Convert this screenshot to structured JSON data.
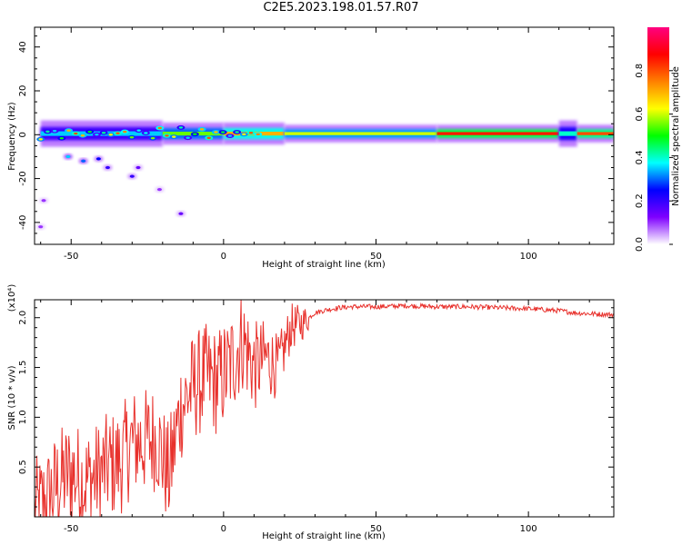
{
  "title": "C2E5.2023.198.01.57.R07",
  "colors": {
    "snr_line": "#e8312c",
    "axis": "#000000",
    "background": "#ffffff"
  },
  "chart_data": [
    {
      "type": "heatmap",
      "name": "spectrogram",
      "xlabel": "Height of straight line (km)",
      "ylabel": "Frequency (Hz)",
      "xlim": [
        -62,
        128
      ],
      "ylim": [
        -50,
        49
      ],
      "xticks": [
        -50,
        0,
        50,
        100
      ],
      "yticks": [
        -40,
        -20,
        0,
        20,
        40
      ],
      "colorbar": {
        "label": "Normalized spectral amplitude",
        "range": [
          0.0,
          1.0
        ],
        "ticks": [
          0.0,
          0.2,
          0.4,
          0.6,
          0.8
        ],
        "tick_labels": [
          "0.0",
          "0.2",
          "0.4",
          "0.6",
          "0.8"
        ],
        "stops": [
          "#ffffff",
          "#7f00ff",
          "#0000ff",
          "#00ffff",
          "#00ff00",
          "#ffff00",
          "#ff8000",
          "#ff0000",
          "#ff0080"
        ]
      },
      "main_band": {
        "center_hz": 0.5,
        "segments": [
          {
            "x": [
              -60,
              -20
            ],
            "half_width_hz": 3.0,
            "amplitude": 0.35
          },
          {
            "x": [
              -20,
              0
            ],
            "half_width_hz": 2.5,
            "amplitude": 0.55
          },
          {
            "x": [
              0,
              20
            ],
            "half_width_hz": 2.5,
            "amplitude": 0.7
          },
          {
            "x": [
              20,
              70
            ],
            "half_width_hz": 2.0,
            "amplitude": 0.6
          },
          {
            "x": [
              70,
              110
            ],
            "half_width_hz": 2.0,
            "amplitude": 0.85
          },
          {
            "x": [
              110,
              116
            ],
            "half_width_hz": 3.0,
            "amplitude": 0.4
          },
          {
            "x": [
              116,
              128
            ],
            "half_width_hz": 2.0,
            "amplitude": 0.8
          }
        ]
      },
      "scatter_blobs": [
        {
          "x": -51,
          "y": -10,
          "amplitude": 0.35
        },
        {
          "x": -46,
          "y": -12,
          "amplitude": 0.3
        },
        {
          "x": -41,
          "y": -11,
          "amplitude": 0.25
        },
        {
          "x": -38,
          "y": -15,
          "amplitude": 0.2
        },
        {
          "x": -30,
          "y": -19,
          "amplitude": 0.2
        },
        {
          "x": -28,
          "y": -15,
          "amplitude": 0.15
        },
        {
          "x": -21,
          "y": -25,
          "amplitude": 0.1
        },
        {
          "x": -14,
          "y": -36,
          "amplitude": 0.15
        },
        {
          "x": -59,
          "y": -30,
          "amplitude": 0.1
        },
        {
          "x": -60,
          "y": -42,
          "amplitude": 0.1
        }
      ]
    },
    {
      "type": "line",
      "name": "snr",
      "xlabel": "Height of straight line (km)",
      "ylabel": "SNR (10 * v/v)",
      "y_multiplier": "(x10⁴)",
      "xlim": [
        -62,
        128
      ],
      "ylim": [
        0,
        2.18
      ],
      "xticks": [
        -50,
        0,
        50,
        100
      ],
      "yticks": [
        0.5,
        1.0,
        1.5,
        2.0
      ],
      "series": [
        {
          "name": "SNR",
          "x": [
            -62,
            -58,
            -54,
            -50,
            -46,
            -42,
            -38,
            -34,
            -30,
            -26,
            -22,
            -18,
            -14,
            -10,
            -6,
            -2,
            2,
            6,
            10,
            14,
            18,
            22,
            26,
            30,
            34,
            38,
            42,
            50,
            60,
            70,
            80,
            90,
            100,
            110,
            115,
            120,
            128
          ],
          "values": [
            0.05,
            0.15,
            0.35,
            0.45,
            0.35,
            0.4,
            0.5,
            0.55,
            0.75,
            0.75,
            0.8,
            0.4,
            1.1,
            1.3,
            1.4,
            1.35,
            1.5,
            1.8,
            1.5,
            1.6,
            1.5,
            1.9,
            1.95,
            2.05,
            2.08,
            2.1,
            2.11,
            2.11,
            2.12,
            2.11,
            2.11,
            2.1,
            2.09,
            2.07,
            2.05,
            2.04,
            2.03
          ]
        }
      ]
    }
  ]
}
